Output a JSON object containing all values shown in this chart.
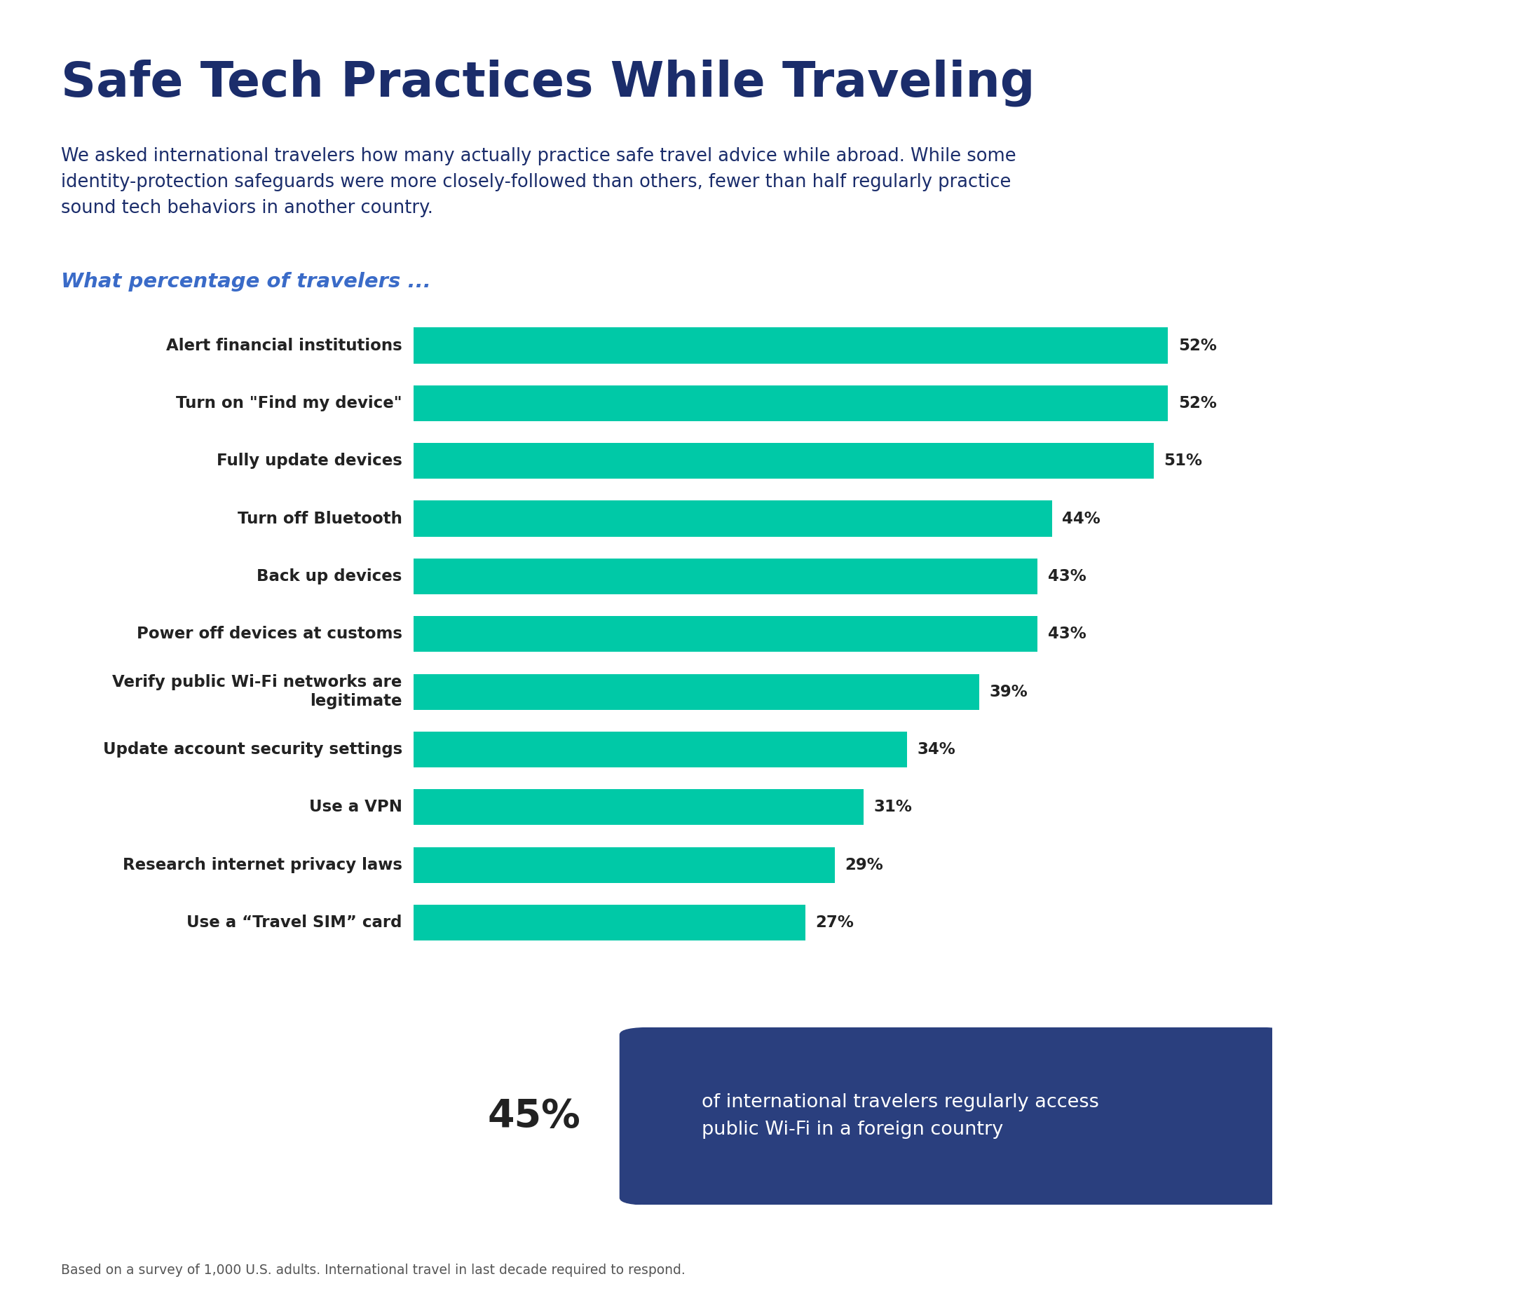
{
  "title": "Safe Tech Practices While Traveling",
  "subtitle": "We asked international travelers how many actually practice safe travel advice while abroad. While some\nidentity-protection safeguards were more closely-followed than others, fewer than half regularly practice\nsound tech behaviors in another country.",
  "section_label": "What percentage of travelers ...",
  "categories": [
    "Alert financial institutions",
    "Turn on \"Find my device\"",
    "Fully update devices",
    "Turn off Bluetooth",
    "Back up devices",
    "Power off devices at customs",
    "Verify public Wi-Fi networks are\nlegitimate",
    "Update account security settings",
    "Use a VPN",
    "Research internet privacy laws",
    "Use a “Travel SIM” card"
  ],
  "values": [
    52,
    52,
    51,
    44,
    43,
    43,
    39,
    34,
    31,
    29,
    27
  ],
  "bar_color": "#00C9A7",
  "title_color": "#1B2D6B",
  "subtitle_color": "#1B2D6B",
  "section_label_color": "#3A6BC8",
  "label_color": "#222222",
  "pct_color": "#222222",
  "background_color": "#FFFFFF",
  "top_bar_color": "#1B2D6B",
  "footnote_text": "Based on a survey of 1,000 U.S. adults. International travel in last decade required to respond.",
  "callout_pct": "45%",
  "callout_text": "of international travelers regularly access\npublic Wi-Fi in a foreign country",
  "callout_bg": "#2A3F7E",
  "xlim": [
    0,
    65
  ]
}
